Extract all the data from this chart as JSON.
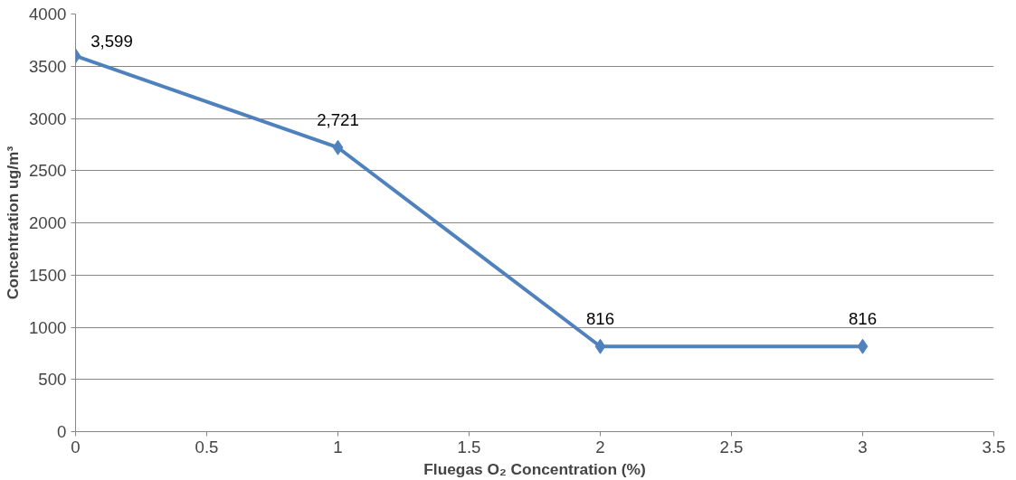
{
  "chart_data": {
    "type": "line",
    "xlabel": "Fluegas O₂ Concentration (%)",
    "ylabel": "Concentration ug/m³",
    "x": [
      0,
      1,
      2,
      3
    ],
    "series": [
      {
        "color": "#4f81bd",
        "values": [
          3599,
          2721,
          816,
          816
        ],
        "value_labels": [
          "3,599",
          "2,721",
          "816",
          "816"
        ]
      }
    ],
    "xlim": [
      0,
      3.5
    ],
    "xticks": [
      0,
      0.5,
      1,
      1.5,
      2,
      2.5,
      3,
      3.5
    ],
    "ylim": [
      0,
      4000
    ],
    "yticks": [
      0,
      500,
      1000,
      1500,
      2000,
      2500,
      3000,
      3500,
      4000
    ],
    "grid": "y",
    "marker": "diamond",
    "line_style": "solid"
  }
}
